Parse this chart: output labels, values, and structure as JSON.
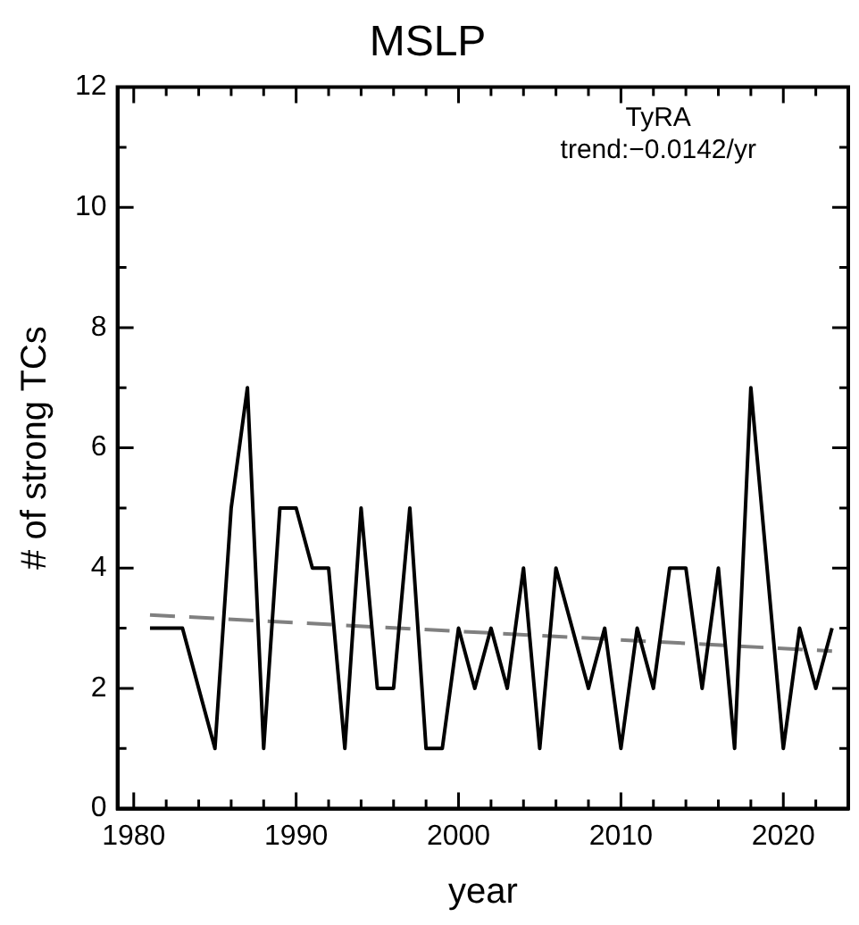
{
  "chart_data": {
    "type": "line",
    "title": "MSLP",
    "xlabel": "year",
    "ylabel": "# of strong TCs",
    "annotations": [
      "TyRA",
      "trend:−0.0142/yr"
    ],
    "xlim": [
      1979,
      2024
    ],
    "xticks": [
      1980,
      {
        "value": 1982,
        "label": null
      },
      {
        "value": 1984,
        "label": null
      },
      {
        "value": 1986,
        "label": null
      },
      {
        "value": 1988,
        "label": null
      },
      1990,
      {
        "value": 1992,
        "label": null
      },
      {
        "value": 1994,
        "label": null
      },
      {
        "value": 1996,
        "label": null
      },
      {
        "value": 1998,
        "label": null
      },
      2000,
      {
        "value": 2002,
        "label": null
      },
      {
        "value": 2004,
        "label": null
      },
      {
        "value": 2006,
        "label": null
      },
      {
        "value": 2008,
        "label": null
      },
      2010,
      {
        "value": 2012,
        "label": null
      },
      {
        "value": 2014,
        "label": null
      },
      {
        "value": 2016,
        "label": null
      },
      {
        "value": 2018,
        "label": null
      },
      2020,
      {
        "value": 2022,
        "label": null
      }
    ],
    "ylim": [
      0,
      12
    ],
    "yticks": [
      0,
      {
        "value": 1,
        "label": null
      },
      2,
      {
        "value": 3,
        "label": null
      },
      4,
      {
        "value": 5,
        "label": null
      },
      6,
      {
        "value": 7,
        "label": null
      },
      8,
      {
        "value": 9,
        "label": null
      },
      10,
      {
        "value": 11,
        "label": null
      },
      12
    ],
    "grid": false,
    "legend": false,
    "marker": "none",
    "series": [
      {
        "color": "#000000",
        "line_style": "solid",
        "x": [
          1981,
          1982,
          1983,
          1984,
          1985,
          1986,
          1987,
          1988,
          1989,
          1990,
          1991,
          1992,
          1993,
          1994,
          1995,
          1996,
          1997,
          1998,
          1999,
          2000,
          2001,
          2002,
          2003,
          2004,
          2005,
          2006,
          2007,
          2008,
          2009,
          2010,
          2011,
          2012,
          2013,
          2014,
          2015,
          2016,
          2017,
          2018,
          2019,
          2020,
          2021,
          2022,
          2023
        ],
        "values": [
          3,
          3,
          3,
          2,
          1,
          5,
          7,
          1,
          5,
          5,
          4,
          4,
          1,
          5,
          2,
          2,
          5,
          1,
          1,
          3,
          2,
          3,
          2,
          4,
          1,
          4,
          3,
          2,
          3,
          1,
          3,
          2,
          4,
          4,
          2,
          4,
          1,
          7,
          4,
          1,
          3,
          2,
          3
        ]
      },
      {
        "color": "#808080",
        "line_style": "dashed",
        "x": [
          1981,
          2023
        ],
        "values": [
          3.22,
          2.62
        ]
      }
    ]
  }
}
